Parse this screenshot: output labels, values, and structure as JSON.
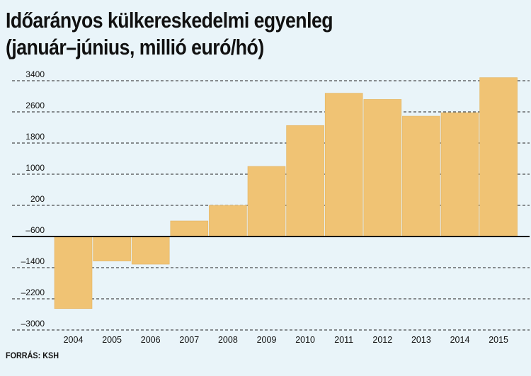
{
  "title_line1": "Időarányos külkereskedelmi egyenleg",
  "title_line2": "(január–június, millió euró/hó)",
  "source": "FORRÁS: KSH",
  "colors": {
    "bar": "#f0c374",
    "bar_edge": "#e4b461",
    "background": "#e9f4f9",
    "grid": "#222222",
    "zero_line": "#000000"
  },
  "chart_data": {
    "type": "bar",
    "title": "Időarányos külkereskedelmi egyenleg (január–június, millió euró/hó)",
    "xlabel": "",
    "ylabel": "",
    "categories": [
      "2004",
      "2005",
      "2006",
      "2007",
      "2008",
      "2009",
      "2010",
      "2011",
      "2012",
      "2013",
      "2014",
      "2015"
    ],
    "values": [
      -2450,
      -1230,
      -1310,
      -200,
      200,
      1200,
      2250,
      3080,
      2920,
      2490,
      2580,
      3480
    ],
    "ylim": [
      -3000,
      3400
    ],
    "yticks": [
      3400,
      2600,
      1800,
      1000,
      200,
      -600,
      -1400,
      -2200,
      -3000
    ],
    "ytick_labels": [
      "3400",
      "2600",
      "1800",
      "1000",
      "200",
      "–600",
      "–1400",
      "–2200",
      "–3000"
    ],
    "baseline_label": "-600",
    "grid": true,
    "legend": "none"
  }
}
